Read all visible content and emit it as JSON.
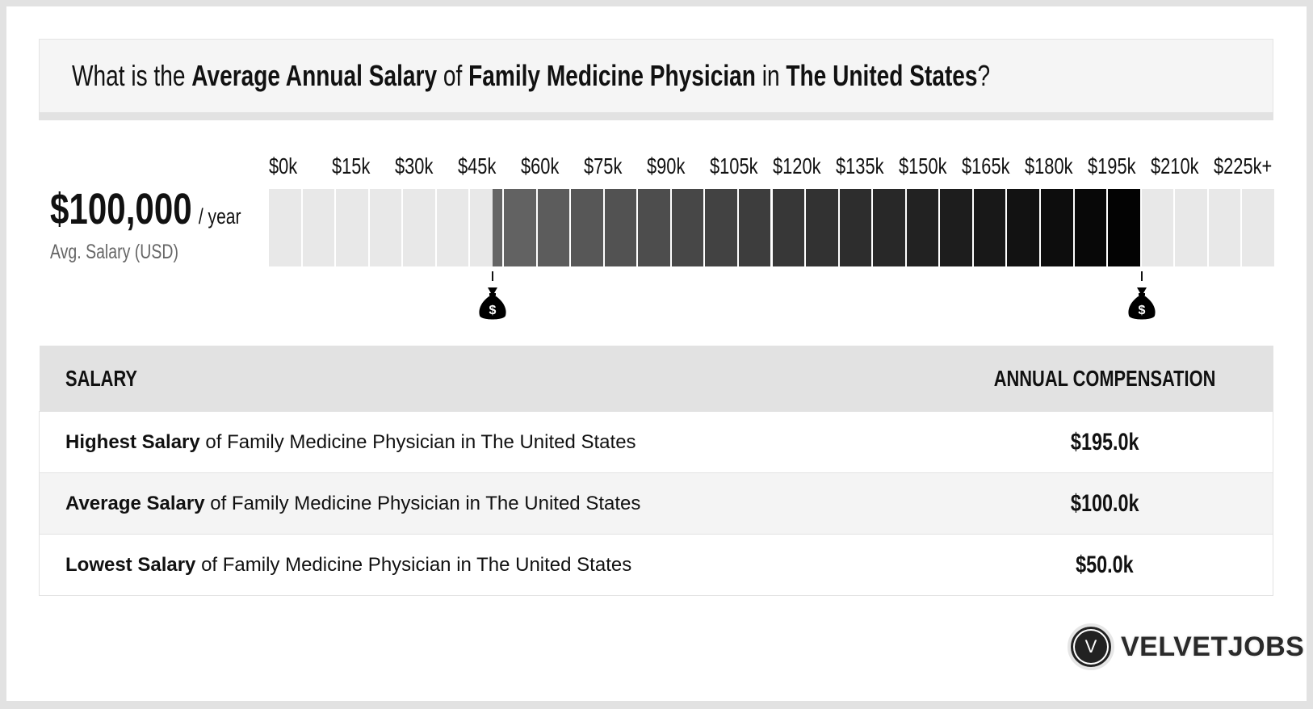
{
  "header": {
    "parts": [
      {
        "text": "What is the ",
        "bold": false
      },
      {
        "text": "Average Annual Salary",
        "bold": true
      },
      {
        "text": " of ",
        "bold": false
      },
      {
        "text": "Family Medicine Physician",
        "bold": true
      },
      {
        "text": " in ",
        "bold": false
      },
      {
        "text": "The United States",
        "bold": true
      },
      {
        "text": "?",
        "bold": false
      }
    ]
  },
  "summary": {
    "value": "$100,000",
    "unit": "/ year",
    "label": "Avg. Salary (USD)"
  },
  "chart_data": {
    "type": "range-bar",
    "tick_labels": [
      "$0k",
      "$15k",
      "$30k",
      "$45k",
      "$60k",
      "$75k",
      "$90k",
      "$105k",
      "$120k",
      "$135k",
      "$150k",
      "$165k",
      "$180k",
      "$195k",
      "$210k",
      "$225k+"
    ],
    "xlim": [
      0,
      225000
    ],
    "segment_size": 7500,
    "range_low": 50000,
    "range_high": 195000,
    "average": 100000,
    "colors": {
      "empty": "#e8e8e8",
      "fill_start": "#666666",
      "fill_end": "#000000"
    },
    "markers": [
      {
        "value": 50000,
        "icon": "money-bag-icon"
      },
      {
        "value": 195000,
        "icon": "money-bag-icon"
      }
    ]
  },
  "table": {
    "headers": [
      "SALARY",
      "ANNUAL COMPENSATION"
    ],
    "rows": [
      {
        "bold": "Highest Salary",
        "rest": " of Family Medicine Physician in The United States",
        "value": "$195.0k"
      },
      {
        "bold": "Average Salary",
        "rest": " of Family Medicine Physician in The United States",
        "value": "$100.0k"
      },
      {
        "bold": "Lowest Salary",
        "rest": " of Family Medicine Physician in The United States",
        "value": "$50.0k"
      }
    ]
  },
  "logo": {
    "letter": "V",
    "text": "VELVETJOBS"
  }
}
